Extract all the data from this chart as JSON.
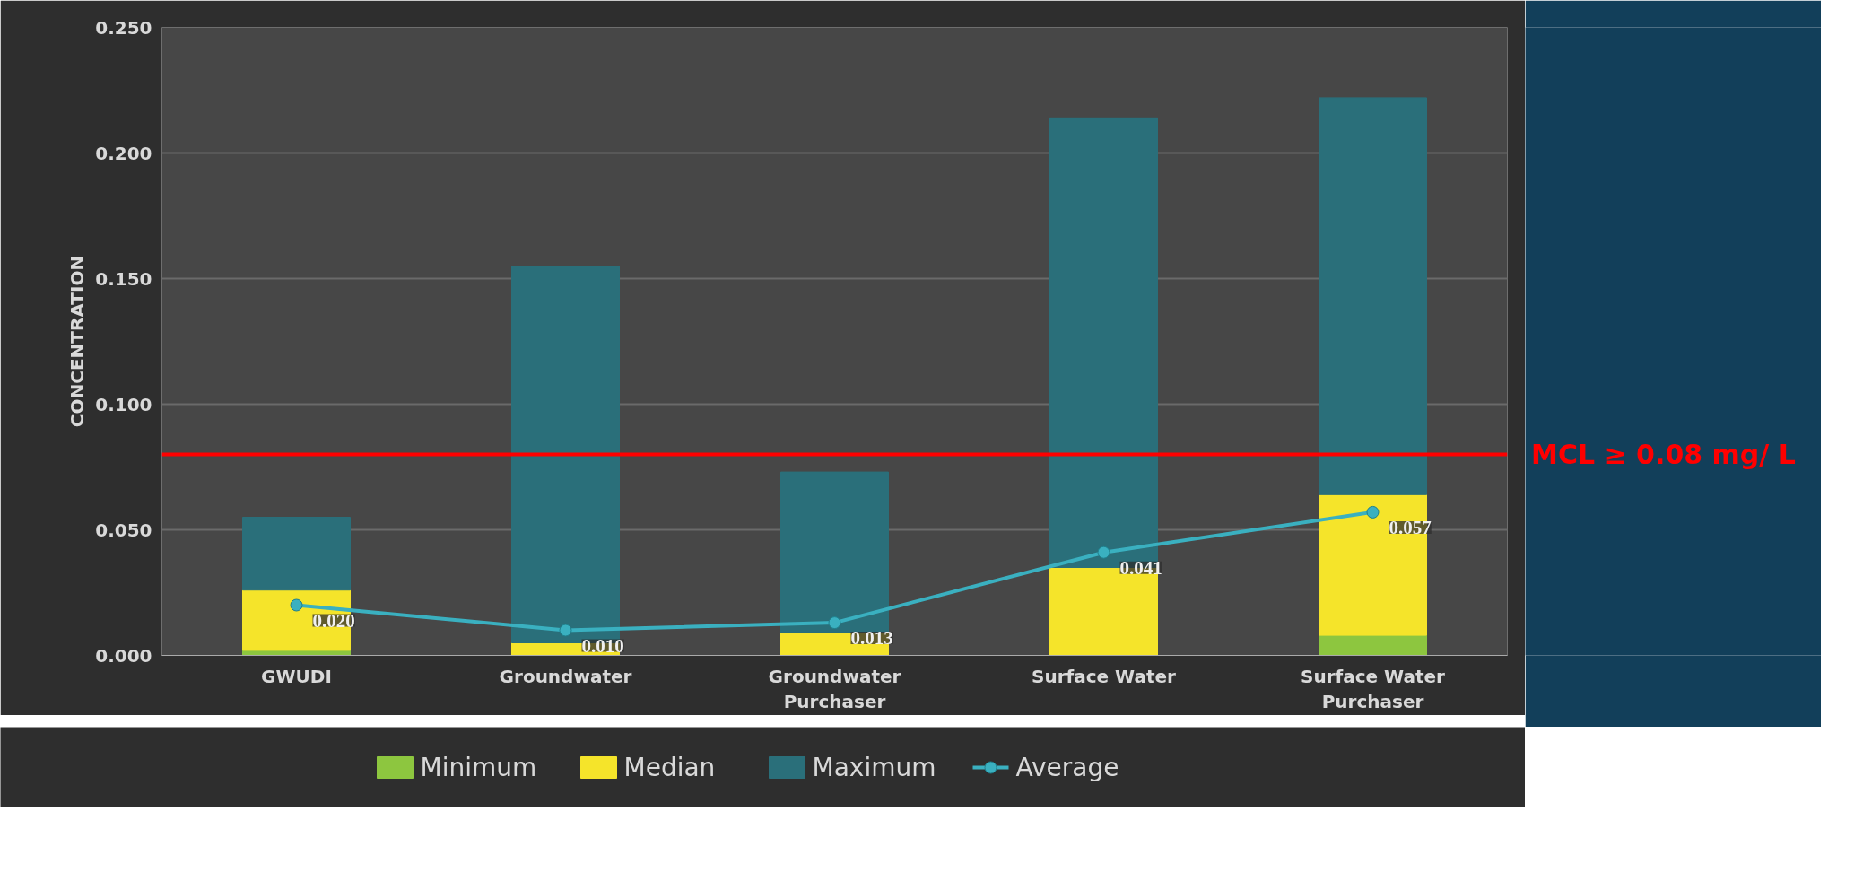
{
  "chart_data": {
    "type": "bar",
    "stacked": true,
    "ylabel": "CONCENTRATION",
    "categories": [
      "GWUDI",
      "Groundwater",
      "Groundwater Purchaser",
      "Surface Water",
      "Surface Water Purchaser"
    ],
    "series": [
      {
        "name": "Minimum",
        "color": "#8dc63f",
        "values": [
          0.002,
          0,
          0,
          0,
          0.008
        ]
      },
      {
        "name": "Median",
        "color": "#f5e42a",
        "values": [
          0.024,
          0.005,
          0.009,
          0.035,
          0.056
        ]
      },
      {
        "name": "Maximum",
        "color": "#2a6f7a",
        "values": [
          0.029,
          0.15,
          0.064,
          0.179,
          0.158
        ]
      },
      {
        "name": "Average",
        "type": "line",
        "color": "#3ab0c0",
        "marker": "circle",
        "values": [
          0.02,
          0.01,
          0.013,
          0.041,
          0.057
        ],
        "value_labels": [
          "0.020",
          "0.010",
          "0.013",
          "0.041",
          "0.057"
        ]
      }
    ],
    "ylim": [
      0,
      0.25
    ],
    "yticks": [
      {
        "value": 0,
        "label": "0.000"
      },
      {
        "value": 0.05,
        "label": "0.050"
      },
      {
        "value": 0.1,
        "label": "0.100"
      },
      {
        "value": 0.15,
        "label": "0.150"
      },
      {
        "value": 0.2,
        "label": "0.200"
      },
      {
        "value": 0.25,
        "label": "0.250"
      }
    ],
    "ref_lines": [
      {
        "axis": "y",
        "value": 0.08,
        "label": "MCL ≥ 0.08 mg/ L",
        "color": "#ff0000"
      }
    ],
    "grid": "y",
    "legend": "bottom"
  }
}
